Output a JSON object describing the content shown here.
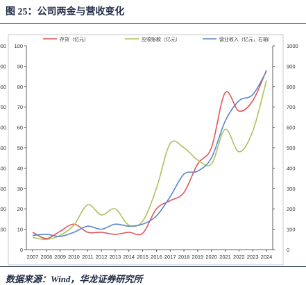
{
  "figure": {
    "title": "图 25：公司两金与营收变化",
    "source": "数据来源：Wind，华龙证券研究所"
  },
  "chart_data": {
    "type": "line",
    "x": [
      "2007",
      "2008",
      "2009",
      "2010",
      "2011",
      "2012",
      "2013",
      "2014",
      "2015",
      "2016",
      "2017",
      "2018",
      "2019",
      "2020",
      "2021",
      "2022",
      "2023",
      "2024"
    ],
    "series": [
      {
        "name": "存货（亿元）",
        "axis": "left",
        "color": "#e0555a",
        "values": [
          8.5,
          5.5,
          9,
          12.5,
          8.5,
          8.5,
          7.5,
          8.5,
          8,
          20,
          24,
          28,
          42,
          50,
          77,
          68,
          73,
          88
        ]
      },
      {
        "name": "应收账款（亿元）",
        "axis": "left",
        "color": "#a9c45a",
        "values": [
          6,
          5,
          7,
          12,
          22,
          17,
          20,
          12,
          14,
          30,
          52,
          50,
          44,
          42,
          59,
          48,
          58,
          83
        ]
      },
      {
        "name": "营业收入（亿元，右轴）",
        "axis": "right",
        "color": "#5b86c9",
        "values": [
          70,
          75,
          65,
          85,
          115,
          100,
          125,
          115,
          125,
          165,
          260,
          370,
          385,
          450,
          630,
          730,
          760,
          875
        ]
      }
    ],
    "left_axis": {
      "ylim": [
        0,
        100
      ],
      "ticks": [
        0,
        10,
        20,
        30,
        40,
        50,
        60,
        70,
        80,
        90,
        100
      ],
      "overflow_labels": [
        "1000",
        "900",
        "800",
        "700",
        "600",
        "500",
        "400",
        "300",
        "200",
        "100"
      ]
    },
    "right_axis": {
      "ylim": [
        0,
        1000
      ],
      "ticks": [
        0,
        100,
        200,
        300,
        400,
        500,
        600,
        700,
        800,
        900,
        1000
      ]
    },
    "grid": false,
    "legend": "top-center"
  }
}
